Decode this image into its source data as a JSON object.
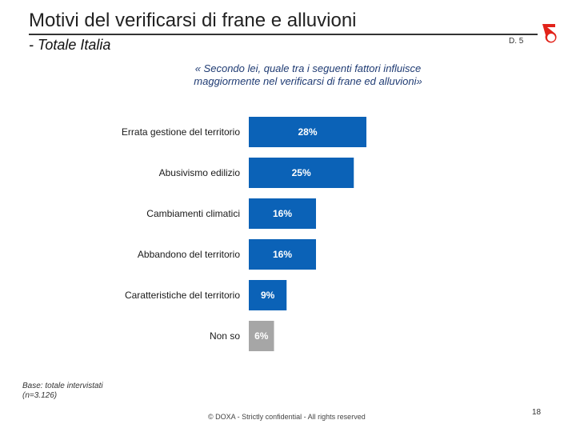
{
  "header": {
    "title": "Motivi del verificarsi di frane e alluvioni",
    "subtitle": "- Totale Italia",
    "question_code": "D. 5"
  },
  "question": {
    "line1": "« Secondo lei, quale tra i seguenti fattori influisce",
    "line2": "maggiormente nel verificarsi di frane ed alluvioni»"
  },
  "chart_data": {
    "type": "bar",
    "orientation": "horizontal",
    "categories": [
      "Errata gestione del territorio",
      "Abusivismo edilizio",
      "Cambiamenti climatici",
      "Abbandono del territorio",
      "Caratteristiche del territorio",
      "Non so"
    ],
    "values": [
      28,
      25,
      16,
      16,
      9,
      6
    ],
    "labels": [
      "28%",
      "25%",
      "16%",
      "16%",
      "9%",
      "6%"
    ],
    "colors": [
      "#0b62b7",
      "#0b62b7",
      "#0b62b7",
      "#0b62b7",
      "#0b62b7",
      "#a6a6a6"
    ],
    "xlim": [
      0,
      100
    ],
    "grid": false
  },
  "footer": {
    "base_line1": "Base: totale intervistati",
    "base_line2": "(n=3.126)",
    "copyright": "© DOXA - Strictly confidential - All rights reserved",
    "page_number": "18"
  },
  "brand_color": "#e2231a"
}
